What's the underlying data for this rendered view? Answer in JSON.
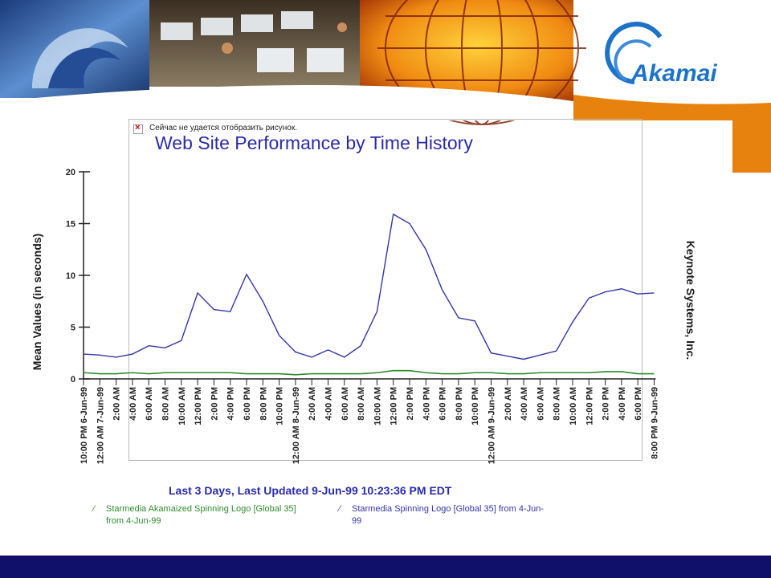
{
  "brand": {
    "logo_text": "Akamai"
  },
  "notice": {
    "text": "Сейчас не удается отобразить рисунок."
  },
  "chart_data": {
    "type": "line",
    "title": "Web Site Performance by Time History",
    "ylabel": "Mean Values (in seconds)",
    "xlabel": "Last 3 Days, Last Updated 9-Jun-99 10:23:36 PM EDT",
    "right_label": "Keynote Systems, Inc.",
    "ylim": [
      0,
      20
    ],
    "yticks": [
      0,
      5,
      10,
      15,
      20
    ],
    "categories": [
      "10:00 PM 6-Jun-99",
      "12:00 AM 7-Jun-99",
      "2:00 AM",
      "4:00 AM",
      "6:00 AM",
      "8:00 AM",
      "10:00 AM",
      "12:00 PM",
      "2:00 PM",
      "4:00 PM",
      "6:00 PM",
      "8:00 PM",
      "10:00 PM",
      "12:00 AM 8-Jun-99",
      "2:00 AM",
      "4:00 AM",
      "6:00 AM",
      "8:00 AM",
      "10:00 AM",
      "12:00 PM",
      "2:00 PM",
      "4:00 PM",
      "6:00 PM",
      "8:00 PM",
      "10:00 PM",
      "12:00 AM 9-Jun-99",
      "2:00 AM",
      "4:00 AM",
      "6:00 AM",
      "8:00 AM",
      "10:00 AM",
      "12:00 PM",
      "2:00 PM",
      "4:00 PM",
      "6:00 PM",
      "8:00 PM 9-Jun-99"
    ],
    "series": [
      {
        "name": "Starmedia Akamaized Spinning Logo [Global 35] from 4-Jun-99",
        "color": "#2e8a2e",
        "values": [
          0.6,
          0.5,
          0.5,
          0.6,
          0.5,
          0.6,
          0.6,
          0.6,
          0.6,
          0.6,
          0.5,
          0.5,
          0.5,
          0.4,
          0.5,
          0.5,
          0.5,
          0.5,
          0.6,
          0.8,
          0.8,
          0.6,
          0.5,
          0.5,
          0.6,
          0.6,
          0.5,
          0.5,
          0.6,
          0.6,
          0.6,
          0.6,
          0.7,
          0.7,
          0.5,
          0.5
        ]
      },
      {
        "name": "Starmedia Spinning Logo [Global 35] from 4-Jun-99",
        "color": "#3535a8",
        "values": [
          2.4,
          2.3,
          2.1,
          2.4,
          3.2,
          3.0,
          3.7,
          8.3,
          6.7,
          6.5,
          10.1,
          7.5,
          4.2,
          2.6,
          2.1,
          2.8,
          2.1,
          3.2,
          6.5,
          15.9,
          15.0,
          12.5,
          8.6,
          5.9,
          5.6,
          2.5,
          2.2,
          1.9,
          2.3,
          2.7,
          5.5,
          7.8,
          8.4,
          8.7,
          8.2,
          8.3
        ]
      }
    ]
  },
  "colors": {
    "banner_sky": "#1e3c78",
    "accent_orange": "#e8820f",
    "footer_bar": "#10106a"
  }
}
